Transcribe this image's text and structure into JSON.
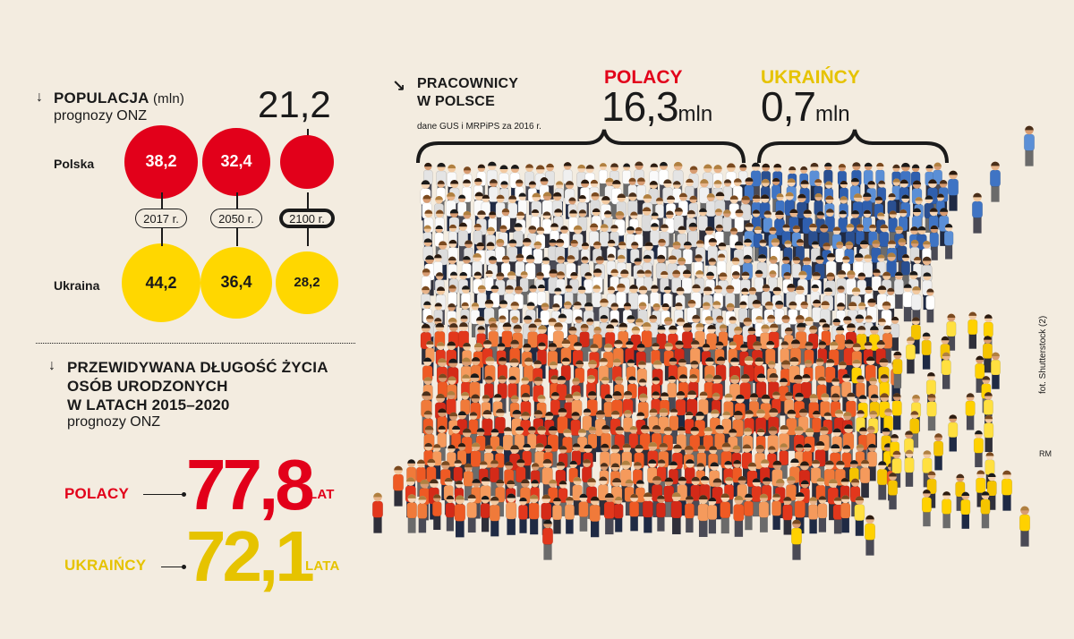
{
  "population": {
    "title": "POPULACJA",
    "unit": "(mln)",
    "subtitle": "prognozy ONZ",
    "arrow": "↓",
    "poland_label": "Polska",
    "ukraine_label": "Ukraina",
    "callout_value": "21,2"
  },
  "life": {
    "title_lines": [
      "PRZEWIDYWANA DŁUGOŚĆ ŻYCIA",
      "OSÓB URODZONYCH",
      "W LATACH 2015–2020"
    ],
    "subtitle": "prognozy ONZ",
    "arrow": "↓",
    "polacy_label": "POLACY",
    "polacy_value": "77,8",
    "polacy_unit": "LAT",
    "ukraincy_label": "UKRAIŃCY",
    "ukraincy_value": "72,1",
    "ukraincy_unit": "LATA"
  },
  "workers": {
    "title_lines": [
      "PRACOWNICY",
      "W POLSCE"
    ],
    "source": "dane GUS i MRPiPS za 2016 r.",
    "arrow": "↘",
    "polacy_label": "POLACY",
    "polacy_value": "16,3",
    "ukraincy_label": "UKRAIŃCY",
    "ukraincy_value": "0,7",
    "unit": "mln"
  },
  "credits": {
    "photo": "fot. Shutterstock (2)",
    "author": "RM"
  },
  "colors": {
    "red": "#e2001a",
    "yellow": "#ffd700",
    "background": "#f3ece0",
    "white_workers": "#f5f5f5",
    "blue_workers": "#3f74c4",
    "orange_workers": "#ee5a24"
  },
  "chart_data": [
    {
      "type": "bubble",
      "title": "POPULACJA (mln)",
      "subtitle": "prognozy ONZ",
      "categories": [
        "2017 r.",
        "2050 r.",
        "2100 r."
      ],
      "series": [
        {
          "name": "Polska",
          "values": [
            38.2,
            32.4,
            21.2
          ],
          "labels": [
            "38,2",
            "32,4",
            "21,2"
          ]
        },
        {
          "name": "Ukraina",
          "values": [
            44.2,
            36.4,
            28.2
          ],
          "labels": [
            "44,2",
            "36,4",
            "28,2"
          ]
        }
      ],
      "highlight_category": "2100 r."
    },
    {
      "type": "bar",
      "title": "PRACOWNICY W POLSCE",
      "unit": "mln",
      "categories": [
        "POLACY",
        "UKRAIŃCY"
      ],
      "values": [
        16.3,
        0.7
      ]
    }
  ]
}
